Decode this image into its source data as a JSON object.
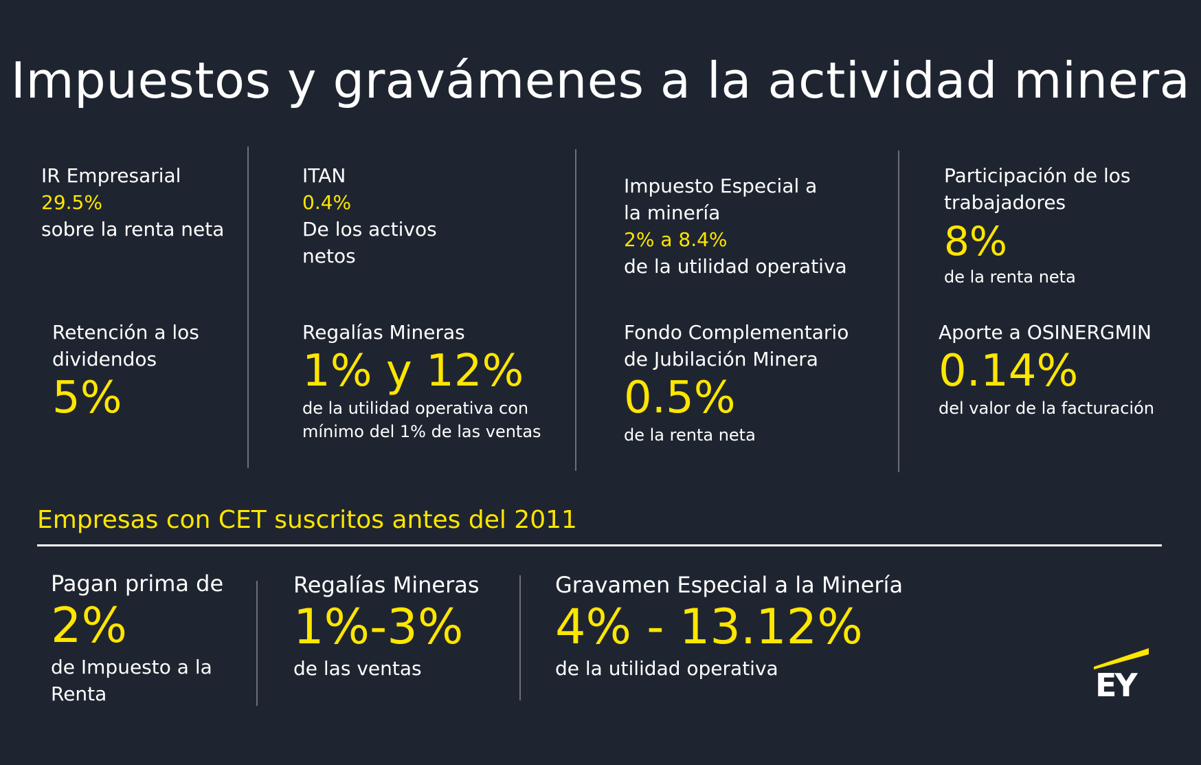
{
  "title": "Impuestos y gravámenes a la actividad minera",
  "top_items": {
    "ir": {
      "label": "IR Empresarial",
      "value": "29.5%",
      "desc": "sobre la renta neta"
    },
    "itan": {
      "label": "ITAN",
      "value": "0.4%",
      "desc_1": "De los activos",
      "desc_2": "netos"
    },
    "iem": {
      "label_1": "Impuesto Especial a",
      "label_2": "la minería",
      "value": "2% a 8.4%",
      "desc": "de la utilidad operativa"
    },
    "participacion": {
      "label_1": "Participación de los",
      "label_2": "trabajadores",
      "value": "8%",
      "desc": "de la renta neta"
    },
    "retencion": {
      "label_1": "Retención a los",
      "label_2": "dividendos",
      "value": "5%"
    },
    "regalias": {
      "label": "Regalías Mineras",
      "value": "1% y 12%",
      "desc_1": "de la utilidad operativa con",
      "desc_2": "mínimo del 1% de las ventas"
    },
    "fondo": {
      "label_1": "Fondo Complementario",
      "label_2": "de Jubilación Minera",
      "value": "0.5%",
      "desc": "de la renta neta"
    },
    "osinergmin": {
      "label": "Aporte a OSINERGMIN",
      "value": "0.14%",
      "desc": "del valor de la facturación"
    }
  },
  "cet": {
    "heading": "Empresas con CET suscritos antes del 2011",
    "prima": {
      "label": "Pagan prima de",
      "value": "2%",
      "desc_1": "de Impuesto a la",
      "desc_2": "Renta"
    },
    "regalias": {
      "label": "Regalías Mineras",
      "value": "1%-3%",
      "desc": "de las ventas"
    },
    "gravamen": {
      "label": "Gravamen Especial a la Minería",
      "value": "4% - 13.12%",
      "desc": "de la utilidad operativa"
    }
  },
  "logo": {
    "text": "EY",
    "accent_color": "#ffe600"
  },
  "colors": {
    "background": "#1f2530",
    "accent": "#ffe600",
    "text": "#ffffff"
  }
}
